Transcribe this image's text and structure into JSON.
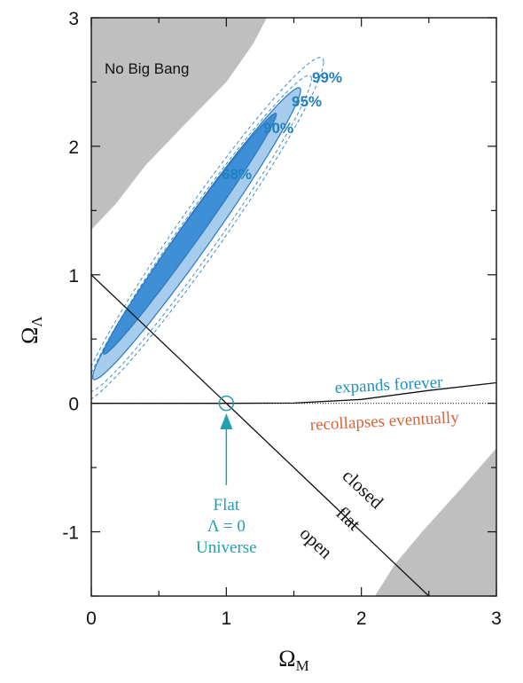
{
  "chart_data": {
    "type": "contour",
    "xlabel": "Ω",
    "xlabel_sub": "M",
    "ylabel": "Ω",
    "ylabel_sub": "Λ",
    "xlim": [
      0,
      3
    ],
    "ylim": [
      -1.5,
      3
    ],
    "xticks": [
      0,
      1,
      2,
      3
    ],
    "yticks": [
      -1,
      0,
      1,
      2,
      3
    ],
    "grid": false,
    "confidence_regions": [
      {
        "label": "68%",
        "center": [
          0.73,
          1.32
        ],
        "slope": 1.45,
        "half_length_x": 0.64,
        "half_width": 0.13,
        "fill": "#3f8fd6",
        "style": "solid"
      },
      {
        "label": "90%",
        "center": [
          0.78,
          1.32
        ],
        "slope": 1.45,
        "half_length_x": 0.77,
        "half_width": 0.21,
        "fill": "#a6cdee",
        "style": "solid"
      },
      {
        "label": "95%",
        "center": [
          0.8,
          1.32
        ],
        "slope": 1.45,
        "half_length_x": 0.83,
        "half_width": 0.26,
        "fill": "none",
        "style": "dashed"
      },
      {
        "label": "99%",
        "center": [
          0.82,
          1.35
        ],
        "slope": 1.45,
        "half_length_x": 0.9,
        "half_width": 0.31,
        "fill": "none",
        "style": "dashed"
      }
    ],
    "lines": [
      {
        "name": "flat",
        "x": [
          0,
          2.5
        ],
        "y": [
          1,
          -1.5
        ],
        "style": "solid"
      },
      {
        "name": "expands forever / recollapses eventually",
        "x": [
          0,
          1,
          1.5,
          2,
          2.5,
          3
        ],
        "y": [
          0,
          0,
          0.002,
          0.03,
          0.1,
          0.16
        ],
        "style": "solid"
      },
      {
        "name": "Λ=0",
        "x": [
          0,
          3
        ],
        "y": [
          0,
          0
        ],
        "style": "dotted"
      }
    ],
    "marker": {
      "x": 1,
      "y": 0,
      "shape": "open-circle"
    },
    "regions": [
      {
        "label": "No Big Bang",
        "color": "#bfbfbf"
      }
    ],
    "annotations": {
      "no_big_bang": "No Big Bang",
      "c68": "68%",
      "c90": "90%",
      "c95": "95%",
      "c99": "99%",
      "expands": "expands forever",
      "recollapses": "recollapses eventually",
      "closed": "closed",
      "flat": "flat",
      "open": "open",
      "flat_univ_1": "Flat",
      "flat_univ_2": "Λ = 0",
      "flat_univ_3": "Universe"
    },
    "colors": {
      "c68": "#3f8fd6",
      "c90": "#a6cdee",
      "contour_text": "#1f7fbf",
      "expands": "#1f8fbf",
      "recollapses": "#d9643a",
      "flat_universe": "#1fa0b0",
      "shade": "#bfbfbf"
    }
  }
}
